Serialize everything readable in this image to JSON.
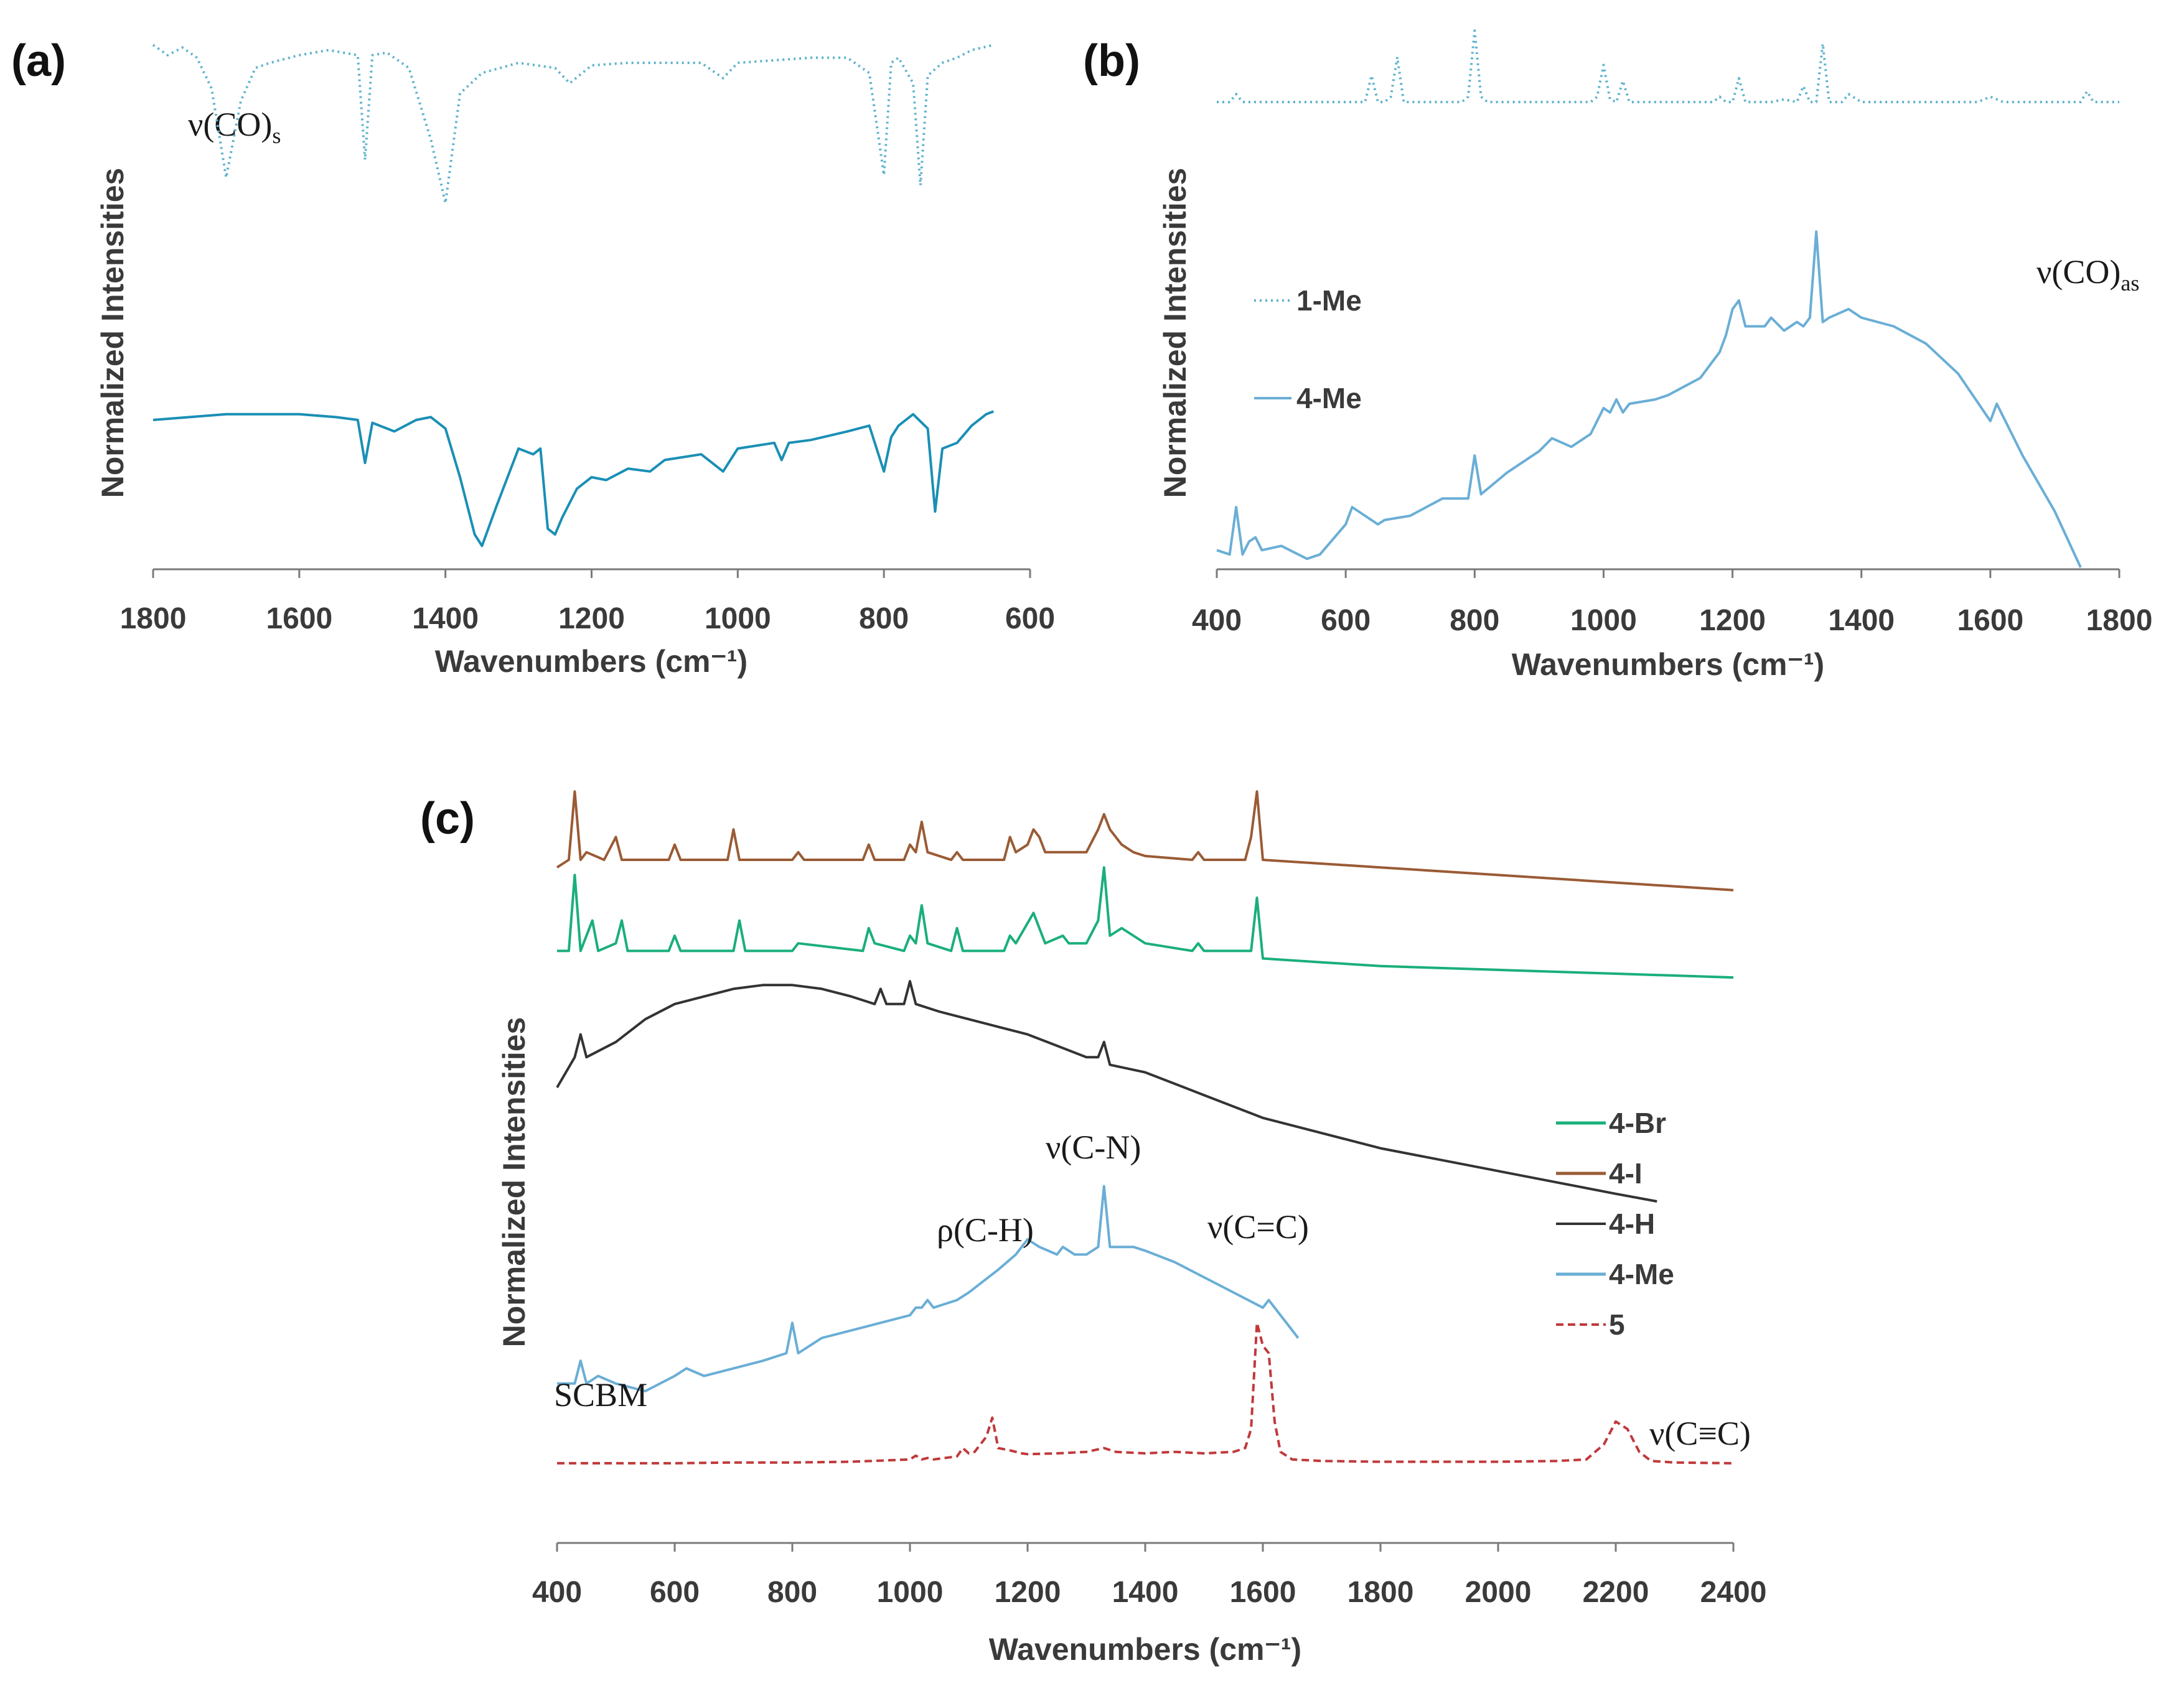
{
  "chart_data": [
    {
      "panel": "(a)",
      "type": "line",
      "xlabel": "Wavenumbers (cm⁻¹)",
      "ylabel": "Normalized Intensities",
      "xlim": [
        1800,
        600
      ],
      "xticks": [
        1800,
        1600,
        1400,
        1200,
        1000,
        800,
        600
      ],
      "annotation": {
        "text": "ν(CO)",
        "sub": "s"
      },
      "series": [
        {
          "name": "1-Me",
          "style": "dotted",
          "color": "#5fb3cd",
          "x": [
            1800,
            1780,
            1760,
            1740,
            1720,
            1700,
            1680,
            1660,
            1640,
            1600,
            1560,
            1520,
            1510,
            1500,
            1480,
            1450,
            1420,
            1400,
            1380,
            1350,
            1300,
            1250,
            1230,
            1200,
            1150,
            1100,
            1050,
            1020,
            1000,
            950,
            900,
            850,
            820,
            800,
            790,
            780,
            760,
            750,
            740,
            720,
            700,
            680,
            650
          ],
          "y": [
            0.97,
            0.93,
            0.96,
            0.92,
            0.8,
            0.45,
            0.75,
            0.88,
            0.9,
            0.93,
            0.95,
            0.93,
            0.52,
            0.93,
            0.94,
            0.88,
            0.6,
            0.35,
            0.78,
            0.86,
            0.9,
            0.88,
            0.82,
            0.89,
            0.9,
            0.9,
            0.9,
            0.84,
            0.9,
            0.91,
            0.92,
            0.92,
            0.86,
            0.46,
            0.9,
            0.92,
            0.82,
            0.42,
            0.85,
            0.9,
            0.92,
            0.95,
            0.97
          ]
        },
        {
          "name": "4-Me",
          "style": "solid",
          "color": "#1a8fb5",
          "x": [
            1800,
            1750,
            1700,
            1650,
            1600,
            1550,
            1520,
            1510,
            1500,
            1470,
            1440,
            1420,
            1400,
            1380,
            1360,
            1350,
            1330,
            1300,
            1280,
            1270,
            1260,
            1250,
            1240,
            1220,
            1200,
            1180,
            1150,
            1120,
            1100,
            1050,
            1020,
            1000,
            950,
            940,
            930,
            900,
            850,
            820,
            800,
            790,
            780,
            760,
            740,
            730,
            720,
            700,
            680,
            660,
            650
          ],
          "y": [
            0.5,
            0.51,
            0.52,
            0.52,
            0.52,
            0.51,
            0.5,
            0.35,
            0.49,
            0.46,
            0.5,
            0.51,
            0.47,
            0.3,
            0.1,
            0.06,
            0.2,
            0.4,
            0.38,
            0.4,
            0.12,
            0.1,
            0.16,
            0.26,
            0.3,
            0.29,
            0.33,
            0.32,
            0.36,
            0.38,
            0.32,
            0.4,
            0.42,
            0.36,
            0.42,
            0.43,
            0.46,
            0.48,
            0.32,
            0.44,
            0.48,
            0.52,
            0.47,
            0.18,
            0.4,
            0.42,
            0.48,
            0.52,
            0.53
          ]
        }
      ]
    },
    {
      "panel": "(b)",
      "type": "line",
      "xlabel": "Wavenumbers (cm⁻¹)",
      "ylabel": "Normalized Intensities",
      "xlim": [
        400,
        1800
      ],
      "xticks": [
        400,
        600,
        800,
        1000,
        1200,
        1400,
        1600,
        1800
      ],
      "annotation": {
        "text": "ν(CO)",
        "sub": "as"
      },
      "legend": [
        "1-Me",
        "4-Me"
      ],
      "series": [
        {
          "name": "1-Me",
          "style": "dotted",
          "color": "#5fb3cd",
          "x": [
            400,
            420,
            430,
            440,
            460,
            500,
            600,
            630,
            640,
            650,
            660,
            670,
            680,
            690,
            700,
            750,
            780,
            790,
            800,
            810,
            820,
            850,
            900,
            980,
            990,
            1000,
            1010,
            1020,
            1030,
            1040,
            1100,
            1170,
            1180,
            1190,
            1200,
            1210,
            1220,
            1260,
            1280,
            1300,
            1310,
            1320,
            1330,
            1340,
            1350,
            1370,
            1380,
            1400,
            1500,
            1580,
            1600,
            1620,
            1700,
            1740,
            1750,
            1760,
            1800
          ],
          "y": [
            0.72,
            0.72,
            0.75,
            0.72,
            0.72,
            0.72,
            0.72,
            0.72,
            0.82,
            0.72,
            0.72,
            0.74,
            0.89,
            0.72,
            0.72,
            0.72,
            0.72,
            0.74,
            0.99,
            0.74,
            0.72,
            0.72,
            0.72,
            0.72,
            0.74,
            0.86,
            0.73,
            0.72,
            0.8,
            0.72,
            0.72,
            0.72,
            0.74,
            0.72,
            0.72,
            0.81,
            0.72,
            0.72,
            0.73,
            0.72,
            0.78,
            0.72,
            0.72,
            0.94,
            0.72,
            0.72,
            0.75,
            0.72,
            0.72,
            0.72,
            0.74,
            0.72,
            0.72,
            0.72,
            0.76,
            0.72,
            0.72
          ]
        },
        {
          "name": "4-Me",
          "style": "solid",
          "color": "#6aaed6",
          "x": [
            400,
            420,
            430,
            440,
            450,
            460,
            470,
            500,
            540,
            560,
            600,
            610,
            630,
            650,
            660,
            700,
            750,
            790,
            800,
            810,
            850,
            900,
            920,
            950,
            980,
            1000,
            1010,
            1020,
            1030,
            1040,
            1080,
            1100,
            1150,
            1180,
            1190,
            1200,
            1210,
            1220,
            1250,
            1260,
            1280,
            1300,
            1310,
            1320,
            1330,
            1340,
            1350,
            1380,
            1400,
            1450,
            1500,
            1550,
            1600,
            1610,
            1650,
            1700,
            1740
          ],
          "y": [
            0.04,
            0.03,
            0.14,
            0.03,
            0.06,
            0.07,
            0.04,
            0.05,
            0.02,
            0.03,
            0.1,
            0.14,
            0.12,
            0.1,
            0.11,
            0.12,
            0.16,
            0.16,
            0.26,
            0.17,
            0.22,
            0.27,
            0.3,
            0.28,
            0.31,
            0.37,
            0.36,
            0.39,
            0.36,
            0.38,
            0.39,
            0.4,
            0.44,
            0.5,
            0.54,
            0.6,
            0.62,
            0.56,
            0.56,
            0.58,
            0.55,
            0.57,
            0.56,
            0.58,
            0.78,
            0.57,
            0.58,
            0.6,
            0.58,
            0.56,
            0.52,
            0.45,
            0.34,
            0.38,
            0.26,
            0.13,
            0.0
          ]
        }
      ]
    },
    {
      "panel": "(c)",
      "type": "line",
      "xlabel": "Wavenumbers (cm⁻¹)",
      "ylabel": "Normalized Intensities",
      "xlim": [
        400,
        2400
      ],
      "xticks": [
        400,
        600,
        800,
        1000,
        1200,
        1400,
        1600,
        1800,
        2000,
        2200,
        2400
      ],
      "legend": [
        "4-Br",
        "4-I",
        "4-H",
        "4-Me",
        "5"
      ],
      "annotations": [
        "SCBM",
        "ρ(C-H)",
        "ν(C-N)",
        "ν(C=C)",
        "ν(C≡C)"
      ],
      "series": [
        {
          "name": "4-I",
          "style": "solid",
          "color": "#9a5b35",
          "x": [
            400,
            420,
            430,
            440,
            450,
            480,
            500,
            510,
            590,
            600,
            610,
            690,
            700,
            710,
            800,
            810,
            820,
            920,
            930,
            940,
            990,
            1000,
            1010,
            1020,
            1030,
            1070,
            1080,
            1090,
            1160,
            1170,
            1180,
            1200,
            1210,
            1220,
            1230,
            1300,
            1320,
            1330,
            1340,
            1360,
            1380,
            1400,
            1480,
            1490,
            1500,
            1570,
            1580,
            1590,
            1600,
            1700,
            1800,
            2000,
            2200,
            2400
          ],
          "y": [
            0.89,
            0.9,
            0.99,
            0.9,
            0.91,
            0.9,
            0.93,
            0.9,
            0.9,
            0.92,
            0.9,
            0.9,
            0.94,
            0.9,
            0.9,
            0.91,
            0.9,
            0.9,
            0.92,
            0.9,
            0.9,
            0.92,
            0.91,
            0.95,
            0.91,
            0.9,
            0.91,
            0.9,
            0.9,
            0.93,
            0.91,
            0.92,
            0.94,
            0.93,
            0.91,
            0.91,
            0.94,
            0.96,
            0.94,
            0.92,
            0.91,
            0.905,
            0.9,
            0.91,
            0.9,
            0.9,
            0.93,
            0.99,
            0.9,
            0.895,
            0.89,
            0.88,
            0.87,
            0.86
          ]
        },
        {
          "name": "4-Br",
          "style": "solid",
          "color": "#1aaf7a",
          "x": [
            400,
            420,
            430,
            440,
            460,
            470,
            500,
            510,
            520,
            590,
            600,
            610,
            700,
            710,
            720,
            800,
            810,
            920,
            930,
            940,
            990,
            1000,
            1010,
            1020,
            1030,
            1070,
            1080,
            1090,
            1160,
            1170,
            1180,
            1210,
            1220,
            1230,
            1260,
            1270,
            1300,
            1320,
            1330,
            1340,
            1360,
            1380,
            1400,
            1480,
            1490,
            1500,
            1580,
            1590,
            1600,
            1700,
            1800,
            2000,
            2200,
            2400
          ],
          "y": [
            0.78,
            0.78,
            0.88,
            0.78,
            0.82,
            0.78,
            0.79,
            0.82,
            0.78,
            0.78,
            0.8,
            0.78,
            0.78,
            0.82,
            0.78,
            0.78,
            0.79,
            0.78,
            0.81,
            0.79,
            0.78,
            0.8,
            0.79,
            0.84,
            0.79,
            0.78,
            0.81,
            0.78,
            0.78,
            0.8,
            0.79,
            0.83,
            0.81,
            0.79,
            0.8,
            0.79,
            0.79,
            0.82,
            0.89,
            0.8,
            0.81,
            0.8,
            0.79,
            0.78,
            0.79,
            0.78,
            0.78,
            0.85,
            0.77,
            0.765,
            0.76,
            0.755,
            0.75,
            0.745
          ]
        },
        {
          "name": "4-H",
          "style": "solid",
          "color": "#333333",
          "x": [
            400,
            430,
            440,
            450,
            500,
            550,
            600,
            650,
            700,
            750,
            800,
            850,
            900,
            940,
            950,
            960,
            990,
            1000,
            1010,
            1050,
            1100,
            1150,
            1200,
            1250,
            1300,
            1320,
            1330,
            1340,
            1400,
            1500,
            1600,
            1700,
            1800,
            2000,
            2200,
            2270
          ],
          "y": [
            0.6,
            0.64,
            0.67,
            0.64,
            0.66,
            0.69,
            0.71,
            0.72,
            0.73,
            0.735,
            0.735,
            0.73,
            0.72,
            0.71,
            0.73,
            0.71,
            0.71,
            0.74,
            0.71,
            0.7,
            0.69,
            0.68,
            0.67,
            0.655,
            0.64,
            0.64,
            0.66,
            0.63,
            0.62,
            0.59,
            0.56,
            0.54,
            0.52,
            0.49,
            0.46,
            0.45
          ]
        },
        {
          "name": "4-Me",
          "style": "solid",
          "color": "#6aaed6",
          "x": [
            400,
            430,
            440,
            450,
            470,
            500,
            550,
            600,
            620,
            650,
            700,
            750,
            790,
            800,
            810,
            850,
            900,
            950,
            1000,
            1010,
            1020,
            1030,
            1040,
            1080,
            1100,
            1150,
            1180,
            1200,
            1220,
            1250,
            1260,
            1280,
            1300,
            1320,
            1330,
            1340,
            1380,
            1400,
            1450,
            1500,
            1550,
            1600,
            1610,
            1650,
            1660
          ],
          "y": [
            0.21,
            0.21,
            0.24,
            0.21,
            0.22,
            0.21,
            0.2,
            0.22,
            0.23,
            0.22,
            0.23,
            0.24,
            0.25,
            0.29,
            0.25,
            0.27,
            0.28,
            0.29,
            0.3,
            0.31,
            0.31,
            0.32,
            0.31,
            0.32,
            0.33,
            0.36,
            0.38,
            0.4,
            0.39,
            0.38,
            0.39,
            0.38,
            0.38,
            0.39,
            0.47,
            0.39,
            0.39,
            0.385,
            0.37,
            0.35,
            0.33,
            0.31,
            0.32,
            0.28,
            0.27
          ]
        },
        {
          "name": "5",
          "style": "dashed",
          "color": "#c0393b",
          "x": [
            400,
            500,
            600,
            700,
            800,
            900,
            1000,
            1010,
            1020,
            1030,
            1040,
            1080,
            1090,
            1100,
            1110,
            1130,
            1140,
            1150,
            1170,
            1180,
            1190,
            1200,
            1250,
            1300,
            1330,
            1350,
            1400,
            1450,
            1500,
            1550,
            1570,
            1580,
            1590,
            1600,
            1610,
            1620,
            1630,
            1650,
            1700,
            1800,
            1900,
            2000,
            2100,
            2150,
            2180,
            2200,
            2220,
            2240,
            2260,
            2300,
            2400
          ],
          "y": [
            0.105,
            0.105,
            0.105,
            0.106,
            0.106,
            0.107,
            0.11,
            0.115,
            0.11,
            0.112,
            0.11,
            0.114,
            0.125,
            0.118,
            0.12,
            0.14,
            0.165,
            0.125,
            0.122,
            0.12,
            0.118,
            0.117,
            0.118,
            0.12,
            0.125,
            0.12,
            0.118,
            0.12,
            0.118,
            0.12,
            0.125,
            0.15,
            0.29,
            0.26,
            0.25,
            0.16,
            0.12,
            0.11,
            0.108,
            0.107,
            0.107,
            0.107,
            0.108,
            0.11,
            0.13,
            0.16,
            0.15,
            0.12,
            0.108,
            0.106,
            0.105
          ]
        }
      ]
    }
  ]
}
